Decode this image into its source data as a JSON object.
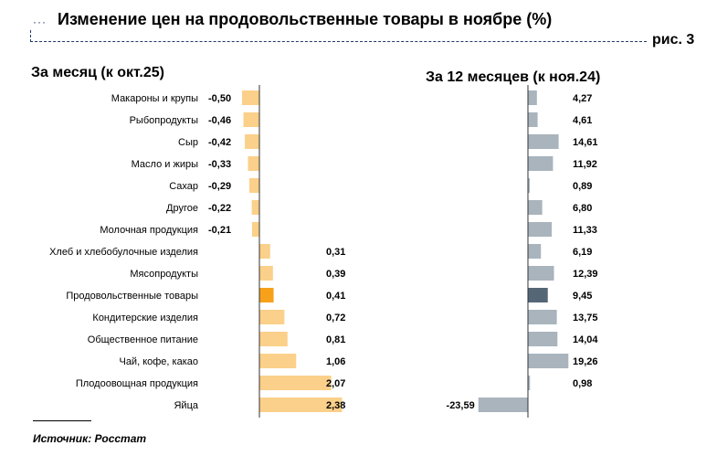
{
  "header": {
    "title": "Изменение цен на продовольственные товары в ноябре (%)",
    "figure_label": "рис. 3"
  },
  "source": "Источник: Росстат",
  "colors": {
    "left_bar": "#fbd08a",
    "left_highlight": "#f7a11a",
    "right_bar": "#a9b4bd",
    "right_highlight": "#556677",
    "axis": "#333333"
  },
  "chart_data": [
    {
      "type": "bar",
      "orientation": "horizontal",
      "title": "За месяц (к окт.25)",
      "categories": [
        "Макароны и крупы",
        "Рыбопродукты",
        "Сыр",
        "Масло и жиры",
        "Сахар",
        "Другое",
        "Молочная продукция",
        "Хлеб и хлебобулочные изделия",
        "Мясопродукты",
        "Продовольственные товары",
        "Кондитерские изделия",
        "Общественное питание",
        "Чай, кофе, какао",
        "Плодоовощная продукция",
        "Яйца"
      ],
      "values": [
        -0.5,
        -0.46,
        -0.42,
        -0.33,
        -0.29,
        -0.22,
        -0.21,
        0.31,
        0.39,
        0.41,
        0.72,
        0.81,
        1.06,
        2.07,
        2.38
      ],
      "labels": [
        "-0,50",
        "-0,46",
        "-0,42",
        "-0,33",
        "-0,29",
        "-0,22",
        "-0,21",
        "0,31",
        "0,39",
        "0,41",
        "0,72",
        "0,81",
        "1,06",
        "2,07",
        "2,38"
      ],
      "highlight_index": 9
    },
    {
      "type": "bar",
      "orientation": "horizontal",
      "title": "За 12 месяцев (к ноя.24)",
      "categories": [
        "Макароны и крупы",
        "Рыбопродукты",
        "Сыр",
        "Масло и жиры",
        "Сахар",
        "Другое",
        "Молочная продукция",
        "Хлеб и хлебобулочные изделия",
        "Мясопродукты",
        "Продовольственные товары",
        "Кондитерские изделия",
        "Общественное питание",
        "Чай, кофе, какао",
        "Плодоовощная продукция",
        "Яйца"
      ],
      "values": [
        4.27,
        4.61,
        14.61,
        11.92,
        0.89,
        6.8,
        11.33,
        6.19,
        12.39,
        9.45,
        13.75,
        14.04,
        19.26,
        0.98,
        -23.59
      ],
      "labels": [
        "4,27",
        "4,61",
        "14,61",
        "11,92",
        "0,89",
        "6,80",
        "11,33",
        "6,19",
        "12,39",
        "9,45",
        "13,75",
        "14,04",
        "19,26",
        "0,98",
        "-23,59"
      ],
      "highlight_index": 9
    }
  ]
}
